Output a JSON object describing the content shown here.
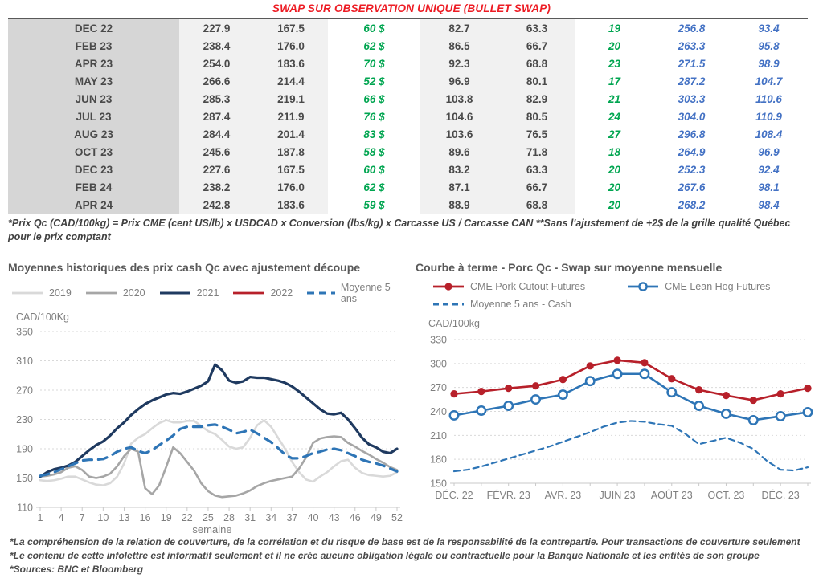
{
  "title": "SWAP SUR OBSERVATION UNIQUE (BULLET SWAP)",
  "title_color": "#ED1C24",
  "table": {
    "rows": [
      {
        "month": "DEC 22",
        "values": [
          "227.9",
          "167.5",
          "60 $",
          "82.7",
          "63.3",
          "19",
          "256.8",
          "93.4"
        ]
      },
      {
        "month": "FEB 23",
        "values": [
          "238.4",
          "176.0",
          "62 $",
          "86.5",
          "66.7",
          "20",
          "263.3",
          "95.8"
        ]
      },
      {
        "month": "APR 23",
        "values": [
          "254.0",
          "183.6",
          "70 $",
          "92.3",
          "68.8",
          "23",
          "271.5",
          "98.9"
        ]
      },
      {
        "month": "MAY 23",
        "values": [
          "266.6",
          "214.4",
          "52 $",
          "96.9",
          "80.1",
          "17",
          "287.2",
          "104.7"
        ]
      },
      {
        "month": "JUN 23",
        "values": [
          "285.3",
          "219.1",
          "66 $",
          "103.8",
          "82.9",
          "21",
          "303.3",
          "110.6"
        ]
      },
      {
        "month": "JUL 23",
        "values": [
          "287.4",
          "211.9",
          "76 $",
          "104.6",
          "80.5",
          "24",
          "304.0",
          "110.9"
        ]
      },
      {
        "month": "AUG 23",
        "values": [
          "284.4",
          "201.4",
          "83 $",
          "103.6",
          "76.5",
          "27",
          "296.8",
          "108.4"
        ]
      },
      {
        "month": "OCT 23",
        "values": [
          "245.6",
          "187.8",
          "58 $",
          "89.6",
          "71.8",
          "18",
          "264.9",
          "96.9"
        ]
      },
      {
        "month": "DEC 23",
        "values": [
          "227.6",
          "167.5",
          "60 $",
          "83.2",
          "63.3",
          "20",
          "252.3",
          "92.4"
        ]
      },
      {
        "month": "FEB 24",
        "values": [
          "238.2",
          "176.0",
          "62 $",
          "87.1",
          "66.7",
          "20",
          "267.6",
          "98.1"
        ]
      },
      {
        "month": "APR 24",
        "values": [
          "242.8",
          "183.6",
          "59 $",
          "88.9",
          "68.8",
          "20",
          "268.2",
          "98.4"
        ]
      }
    ],
    "colors": {
      "green": "#00A550",
      "blue": "#4472C4",
      "dark": "#4a4a4a"
    }
  },
  "table_note": "*Prix Qc (CAD/100kg) = Prix CME (cent US/lb) x USDCAD x Conversion (lbs/kg) x Carcasse US / Carcasse CAN **Sans l'ajustement de +2$ de la grille qualité Québec pour le prix comptant",
  "chart_data": [
    {
      "type": "line",
      "title": "Moyennes historiques des prix cash Qc avec ajustement découpe",
      "ylabel": "CAD/100Kg",
      "xlabel": "semaine",
      "ylim": [
        110,
        350
      ],
      "yticks": [
        110,
        150,
        190,
        230,
        270,
        310,
        350
      ],
      "xticks": [
        1,
        4,
        7,
        10,
        13,
        16,
        19,
        22,
        25,
        28,
        31,
        34,
        37,
        40,
        43,
        46,
        49,
        52
      ],
      "grid": "dashed-horizontal",
      "legend_position": "top",
      "series": [
        {
          "name": "2019",
          "color": "#d9d9d9",
          "values": [
            147,
            146,
            147,
            149,
            152,
            152,
            148,
            144,
            141,
            140,
            143,
            152,
            170,
            197,
            205,
            210,
            218,
            225,
            229,
            226,
            226,
            228,
            228,
            221,
            214,
            210,
            202,
            193,
            190,
            192,
            205,
            222,
            229,
            220,
            205,
            190,
            172,
            158,
            148,
            145,
            152,
            158,
            166,
            173,
            175,
            164,
            157,
            154,
            153,
            152,
            153,
            158
          ]
        },
        {
          "name": "2020",
          "color": "#a6a6a6",
          "values": [
            152,
            153,
            155,
            158,
            164,
            166,
            161,
            152,
            150,
            152,
            156,
            166,
            180,
            190,
            186,
            136,
            128,
            140,
            165,
            192,
            184,
            172,
            160,
            143,
            132,
            126,
            124,
            125,
            126,
            129,
            133,
            139,
            143,
            146,
            148,
            150,
            152,
            163,
            178,
            198,
            204,
            206,
            207,
            206,
            198,
            193,
            187,
            182,
            176,
            171,
            165,
            161
          ]
        },
        {
          "name": "2021",
          "color": "#1f3a60",
          "values": [
            152,
            158,
            162,
            164,
            167,
            172,
            180,
            188,
            195,
            200,
            208,
            218,
            226,
            236,
            244,
            251,
            256,
            260,
            264,
            266,
            265,
            268,
            272,
            276,
            282,
            305,
            297,
            283,
            280,
            282,
            288,
            287,
            287,
            285,
            283,
            280,
            275,
            268,
            260,
            252,
            244,
            238,
            237,
            239,
            230,
            218,
            205,
            196,
            192,
            186,
            184,
            190
          ]
        },
        {
          "name": "2022",
          "color": "#b7202a",
          "values": []
        },
        {
          "name": "Moyenne 5 ans",
          "color": "#2e75b6",
          "style": "dashed",
          "values": [
            153,
            155,
            158,
            162,
            166,
            170,
            174,
            175,
            175,
            176,
            180,
            186,
            190,
            192,
            187,
            184,
            188,
            195,
            201,
            208,
            217,
            220,
            220,
            220,
            222,
            223,
            220,
            216,
            211,
            213,
            216,
            211,
            205,
            199,
            191,
            182,
            177,
            177,
            180,
            184,
            186,
            189,
            190,
            188,
            184,
            180,
            175,
            172,
            170,
            167,
            163,
            159
          ]
        }
      ]
    },
    {
      "type": "line",
      "title": "Courbe à terme - Porc Qc - Swap sur moyenne mensuelle",
      "ylabel": "CAD/100kg",
      "xlabel": "",
      "ylim": [
        150,
        330
      ],
      "yticks": [
        150,
        180,
        210,
        240,
        270,
        300,
        330
      ],
      "xtick_labels": [
        "DÉC. 22",
        "FÉVR. 23",
        "AVR. 23",
        "JUIN 23",
        "AOÛT 23",
        "OCT. 23",
        "DÉC. 23"
      ],
      "months": [
        "DÉC. 22",
        "JANV. 23",
        "FÉVR. 23",
        "MARS 23",
        "AVR. 23",
        "MAI 23",
        "JUIN 23",
        "JUIL. 23",
        "AOÛT 23",
        "SEPT. 23",
        "OCT. 23",
        "NOV. 23",
        "DÉC. 23",
        "JANV. 24"
      ],
      "grid": "dashed-horizontal",
      "legend_position": "top",
      "series": [
        {
          "name": "CME Pork Cutout Futures",
          "color": "#b7202a",
          "marker": "filled",
          "values": [
            262,
            265,
            269,
            272,
            280,
            297,
            304,
            301,
            281,
            267,
            260,
            254,
            262,
            269
          ]
        },
        {
          "name": "CME Lean Hog Futures",
          "color": "#2e75b6",
          "marker": "open",
          "values": [
            235,
            241,
            247,
            255,
            261,
            278,
            287,
            287,
            264,
            247,
            237,
            229,
            234,
            239
          ]
        },
        {
          "name": "Moyenne 5 ans - Cash",
          "color": "#2e75b6",
          "style": "dashed",
          "x_step": 0.5,
          "values": [
            165,
            167,
            171,
            176,
            181,
            186,
            191,
            196,
            202,
            208,
            214,
            221,
            226,
            228,
            227,
            224,
            222,
            212,
            199,
            203,
            207,
            201,
            193,
            178,
            167,
            166,
            170
          ]
        }
      ]
    }
  ],
  "footnotes": [
    "*La compréhension de la relation de couverture, de la corrélation et du risque de base est de la responsabilité de la contrepartie. Pour transactions de couverture seulement",
    "*Le contenu de cette infolettre est informatif seulement et il ne crée aucune obligation légale ou contractuelle pour la Banque Nationale et les entités de son groupe",
    "*Sources: BNC et Bloomberg"
  ]
}
